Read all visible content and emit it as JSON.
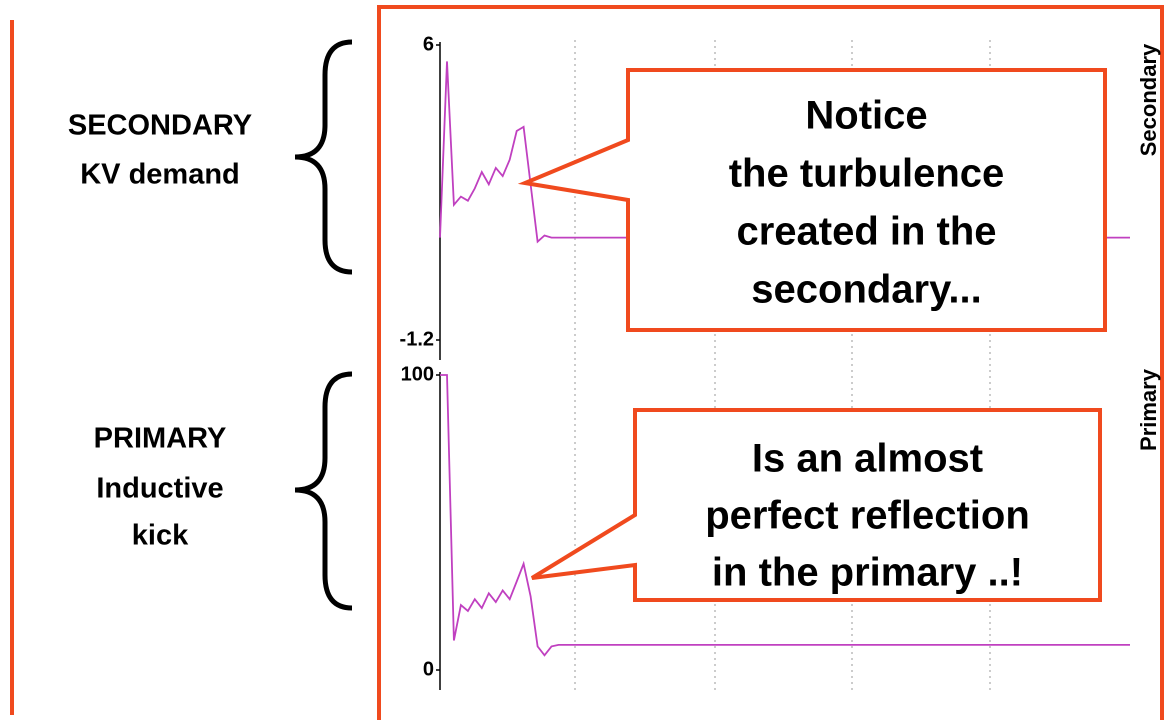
{
  "chart_data": [
    {
      "type": "line",
      "ylabel": "Secondary",
      "label_lines": [
        "SECONDARY",
        "KV demand"
      ],
      "callout_lines": [
        "Notice",
        "the turbulence",
        "created in the",
        "secondary..."
      ],
      "color": "#c040c0",
      "ylim": [
        -1.2,
        6
      ],
      "yticks": [
        -1.2,
        6
      ],
      "values": [
        1.3,
        5.6,
        2.1,
        2.3,
        2.2,
        2.5,
        2.9,
        2.6,
        3.0,
        2.8,
        3.2,
        3.9,
        4.0,
        2.6,
        1.2,
        1.35,
        1.3,
        1.3,
        1.3,
        1.3,
        1.3,
        1.3,
        1.3,
        1.3,
        1.3,
        1.3,
        1.3,
        1.3,
        1.3,
        1.3,
        1.3,
        1.3,
        1.3,
        1.3,
        1.3,
        1.3,
        1.3,
        1.3,
        1.3,
        1.3,
        1.3,
        1.3,
        1.3,
        1.3,
        1.3,
        1.3,
        1.3,
        1.3,
        1.3,
        1.3,
        1.3,
        1.3,
        1.3,
        1.3,
        1.3,
        1.3,
        1.3,
        1.3,
        1.3,
        1.3,
        1.3,
        1.3,
        1.3,
        1.3,
        1.3,
        1.3,
        1.3,
        1.3,
        1.3,
        1.3,
        1.3,
        1.3,
        1.3,
        1.3,
        1.3,
        1.3,
        1.3,
        1.3,
        1.3,
        1.3,
        1.3,
        1.3,
        1.3,
        1.3,
        1.3,
        1.3,
        1.3,
        1.3,
        1.3,
        1.3,
        1.3,
        1.3,
        1.3,
        1.3,
        1.3,
        1.3,
        1.3,
        1.3,
        1.3,
        1.3
      ]
    },
    {
      "type": "line",
      "ylabel": "Primary",
      "label_lines": [
        "PRIMARY",
        "Inductive",
        "kick"
      ],
      "callout_lines": [
        "Is an almost",
        "perfect reflection",
        "in the primary ..!"
      ],
      "color": "#c040c0",
      "ylim": [
        0,
        100
      ],
      "yticks": [
        0,
        100
      ],
      "values": [
        100,
        100,
        10,
        22,
        20,
        24,
        21,
        26,
        23,
        27,
        24,
        30,
        36,
        25,
        8,
        5,
        8,
        8.5,
        8.5,
        8.5,
        8.5,
        8.5,
        8.5,
        8.5,
        8.5,
        8.5,
        8.5,
        8.5,
        8.5,
        8.5,
        8.5,
        8.5,
        8.5,
        8.5,
        8.5,
        8.5,
        8.5,
        8.5,
        8.5,
        8.5,
        8.5,
        8.5,
        8.5,
        8.5,
        8.5,
        8.5,
        8.5,
        8.5,
        8.5,
        8.5,
        8.5,
        8.5,
        8.5,
        8.5,
        8.5,
        8.5,
        8.5,
        8.5,
        8.5,
        8.5,
        8.5,
        8.5,
        8.5,
        8.5,
        8.5,
        8.5,
        8.5,
        8.5,
        8.5,
        8.5,
        8.5,
        8.5,
        8.5,
        8.5,
        8.5,
        8.5,
        8.5,
        8.5,
        8.5,
        8.5,
        8.5,
        8.5,
        8.5,
        8.5,
        8.5,
        8.5,
        8.5,
        8.5,
        8.5,
        8.5,
        8.5,
        8.5,
        8.5,
        8.5,
        8.5,
        8.5,
        8.5,
        8.5,
        8.5,
        8.5
      ]
    }
  ]
}
